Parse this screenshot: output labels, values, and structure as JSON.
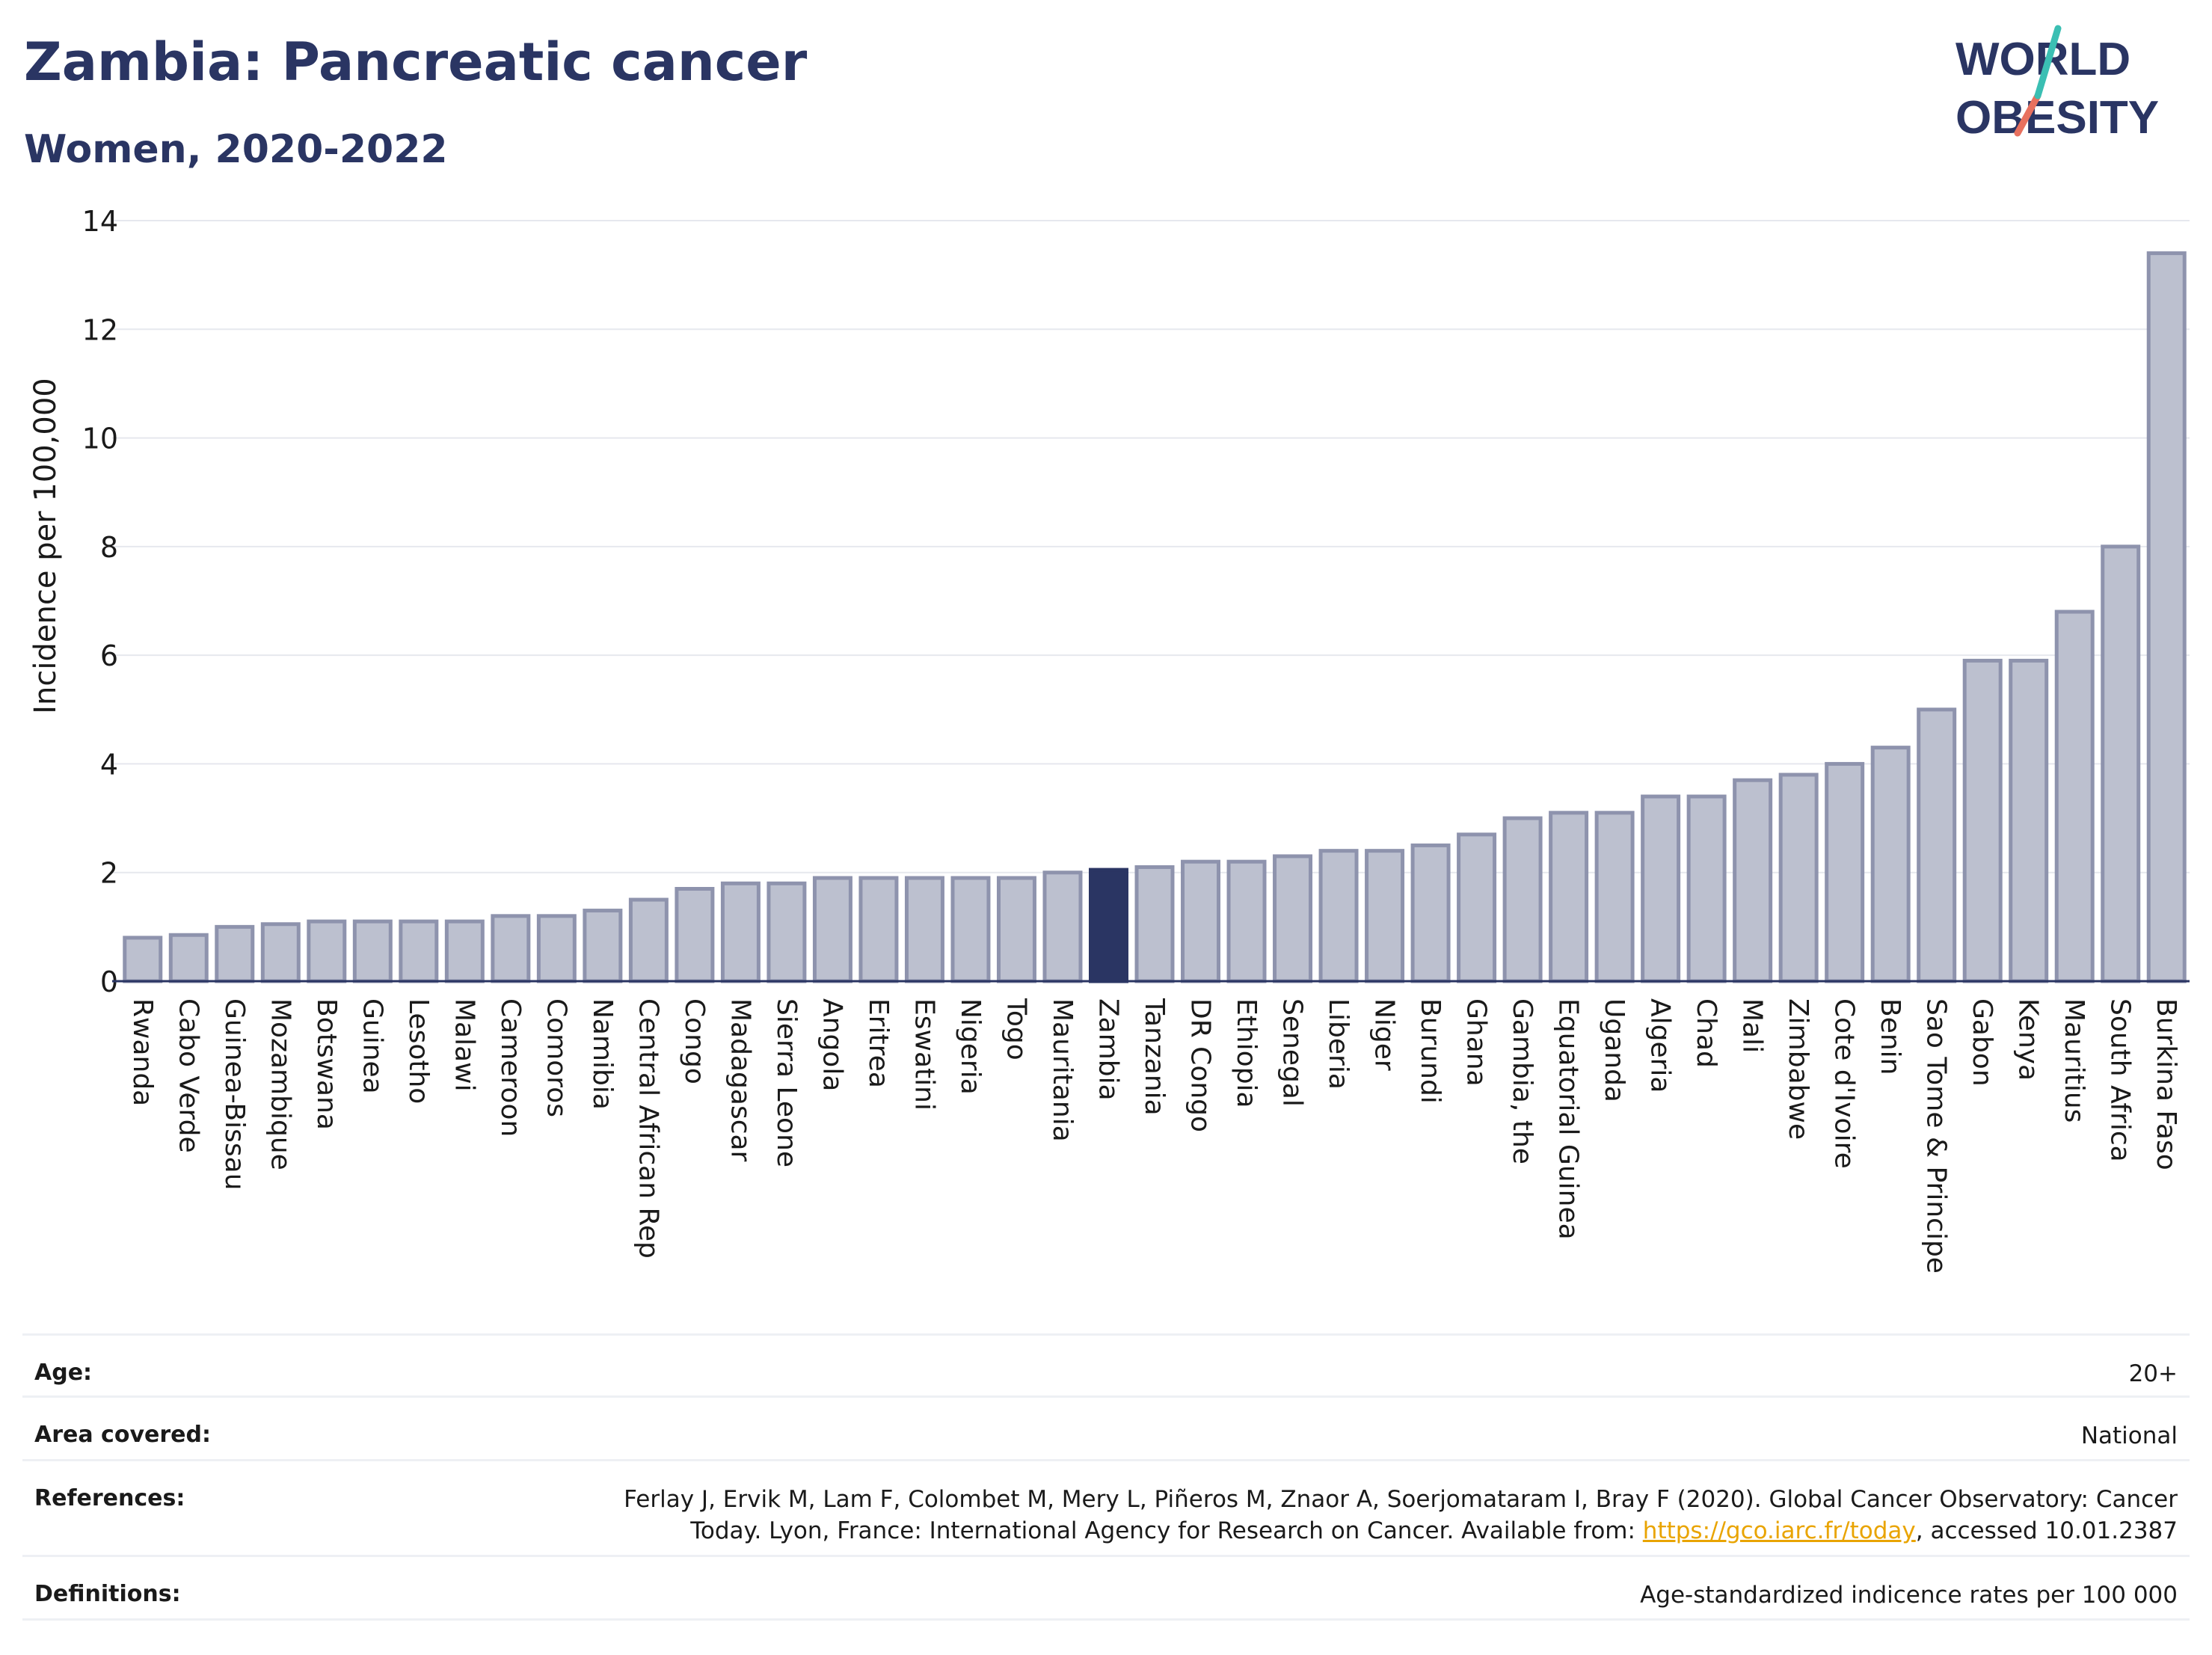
{
  "title": "Zambia: Pancreatic cancer",
  "subtitle": "Women, 2020-2022",
  "logo": {
    "line1": "WORLD",
    "line2": "OBESITY"
  },
  "colors": {
    "highlight": "#2a3563",
    "bar_fill": "#bcc0cf",
    "bar_stroke": "#8e93ad",
    "text": "#2a3563",
    "link": "#e9a400",
    "logo_teal": "#3bbfb3",
    "logo_red": "#e8715f"
  },
  "chart_data": {
    "type": "bar",
    "ylabel": "Incidence per 100,000",
    "ylim": [
      0,
      14
    ],
    "yticks": [
      0,
      2,
      4,
      6,
      8,
      10,
      12,
      14
    ],
    "highlight": "Zambia",
    "categories": [
      "Rwanda",
      "Cabo Verde",
      "Guinea-Bissau",
      "Mozambique",
      "Botswana",
      "Guinea",
      "Lesotho",
      "Malawi",
      "Cameroon",
      "Comoros",
      "Namibia",
      "Central African Rep",
      "Congo",
      "Madagascar",
      "Sierra Leone",
      "Angola",
      "Eritrea",
      "Eswatini",
      "Nigeria",
      "Togo",
      "Mauritania",
      "Zambia",
      "Tanzania",
      "DR Congo",
      "Ethiopia",
      "Senegal",
      "Liberia",
      "Niger",
      "Burundi",
      "Ghana",
      "Gambia, the",
      "Equatorial Guinea",
      "Uganda",
      "Algeria",
      "Chad",
      "Mali",
      "Zimbabwe",
      "Cote d'Ivoire",
      "Benin",
      "Sao Tome & Principe",
      "Gabon",
      "Kenya",
      "Mauritius",
      "South Africa",
      "Burkina Faso"
    ],
    "values": [
      0.8,
      0.85,
      1.0,
      1.05,
      1.1,
      1.1,
      1.1,
      1.1,
      1.2,
      1.2,
      1.3,
      1.5,
      1.7,
      1.8,
      1.8,
      1.9,
      1.9,
      1.9,
      1.9,
      1.9,
      2.0,
      2.05,
      2.1,
      2.2,
      2.2,
      2.3,
      2.4,
      2.4,
      2.5,
      2.7,
      3.0,
      3.1,
      3.1,
      3.4,
      3.4,
      3.7,
      3.8,
      4.0,
      4.3,
      5.0,
      5.9,
      5.9,
      6.8,
      8.0,
      13.4
    ]
  },
  "info": {
    "age_label": "Age:",
    "age_value": "20+",
    "area_label": "Area covered:",
    "area_value": "National",
    "references_label": "References:",
    "references_line1": "Ferlay J, Ervik M, Lam F, Colombet M, Mery L, Piñeros M, Znaor A, Soerjomataram I, Bray F (2020). Global Cancer Observatory: Cancer",
    "references_line2_pre": "Today. Lyon, France: International Agency for Research on Cancer. Available from: ",
    "references_link": "https://gco.iarc.fr/today",
    "references_line2_post": ", accessed 10.01.2387",
    "definitions_label": "Definitions:",
    "definitions_value": "Age-standardized indicence rates per 100 000"
  }
}
